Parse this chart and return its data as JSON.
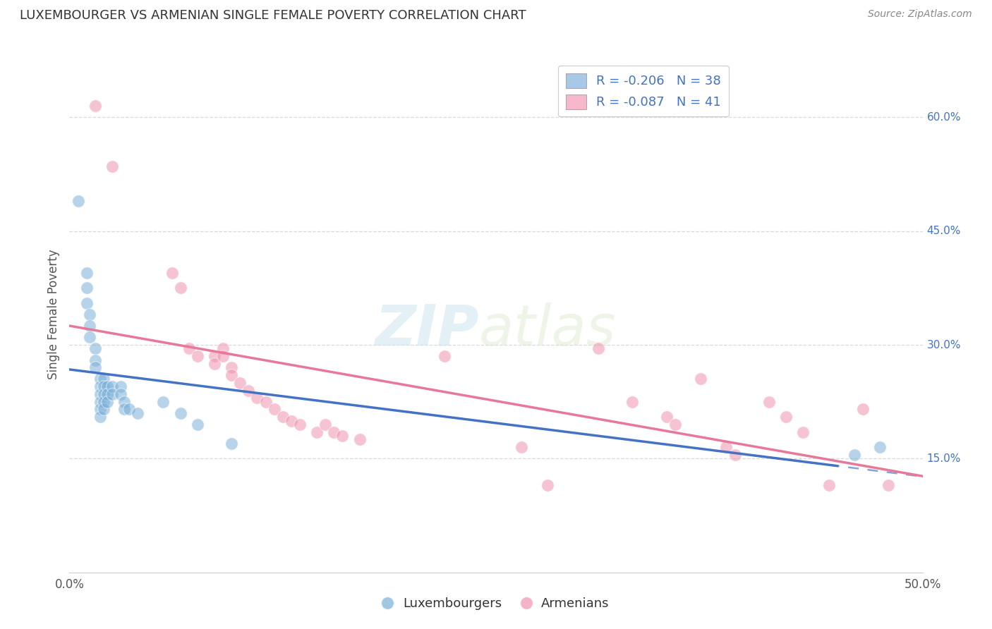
{
  "title": "LUXEMBOURGER VS ARMENIAN SINGLE FEMALE POVERTY CORRELATION CHART",
  "source": "Source: ZipAtlas.com",
  "ylabel": "Single Female Poverty",
  "right_yticks": [
    "60.0%",
    "45.0%",
    "30.0%",
    "15.0%"
  ],
  "right_ytick_vals": [
    0.6,
    0.45,
    0.3,
    0.15
  ],
  "xlim": [
    0.0,
    0.5
  ],
  "ylim": [
    0.0,
    0.68
  ],
  "lux_color": "#7ab0d8",
  "arm_color": "#f093b0",
  "lux_scatter": [
    [
      0.005,
      0.49
    ],
    [
      0.01,
      0.395
    ],
    [
      0.01,
      0.375
    ],
    [
      0.01,
      0.355
    ],
    [
      0.012,
      0.34
    ],
    [
      0.012,
      0.325
    ],
    [
      0.012,
      0.31
    ],
    [
      0.015,
      0.295
    ],
    [
      0.015,
      0.28
    ],
    [
      0.015,
      0.27
    ],
    [
      0.018,
      0.255
    ],
    [
      0.018,
      0.245
    ],
    [
      0.018,
      0.235
    ],
    [
      0.018,
      0.225
    ],
    [
      0.018,
      0.215
    ],
    [
      0.018,
      0.205
    ],
    [
      0.02,
      0.255
    ],
    [
      0.02,
      0.245
    ],
    [
      0.02,
      0.235
    ],
    [
      0.02,
      0.225
    ],
    [
      0.02,
      0.215
    ],
    [
      0.022,
      0.245
    ],
    [
      0.022,
      0.235
    ],
    [
      0.022,
      0.225
    ],
    [
      0.025,
      0.245
    ],
    [
      0.025,
      0.235
    ],
    [
      0.03,
      0.245
    ],
    [
      0.03,
      0.235
    ],
    [
      0.032,
      0.225
    ],
    [
      0.032,
      0.215
    ],
    [
      0.035,
      0.215
    ],
    [
      0.04,
      0.21
    ],
    [
      0.055,
      0.225
    ],
    [
      0.065,
      0.21
    ],
    [
      0.075,
      0.195
    ],
    [
      0.095,
      0.17
    ],
    [
      0.46,
      0.155
    ],
    [
      0.475,
      0.165
    ]
  ],
  "arm_scatter": [
    [
      0.015,
      0.615
    ],
    [
      0.025,
      0.535
    ],
    [
      0.06,
      0.395
    ],
    [
      0.065,
      0.375
    ],
    [
      0.07,
      0.295
    ],
    [
      0.075,
      0.285
    ],
    [
      0.085,
      0.285
    ],
    [
      0.085,
      0.275
    ],
    [
      0.09,
      0.295
    ],
    [
      0.09,
      0.285
    ],
    [
      0.095,
      0.27
    ],
    [
      0.095,
      0.26
    ],
    [
      0.1,
      0.25
    ],
    [
      0.105,
      0.24
    ],
    [
      0.11,
      0.23
    ],
    [
      0.115,
      0.225
    ],
    [
      0.12,
      0.215
    ],
    [
      0.125,
      0.205
    ],
    [
      0.13,
      0.2
    ],
    [
      0.135,
      0.195
    ],
    [
      0.145,
      0.185
    ],
    [
      0.15,
      0.195
    ],
    [
      0.155,
      0.185
    ],
    [
      0.16,
      0.18
    ],
    [
      0.17,
      0.175
    ],
    [
      0.22,
      0.285
    ],
    [
      0.265,
      0.165
    ],
    [
      0.28,
      0.115
    ],
    [
      0.31,
      0.295
    ],
    [
      0.33,
      0.225
    ],
    [
      0.35,
      0.205
    ],
    [
      0.355,
      0.195
    ],
    [
      0.37,
      0.255
    ],
    [
      0.385,
      0.165
    ],
    [
      0.39,
      0.155
    ],
    [
      0.41,
      0.225
    ],
    [
      0.42,
      0.205
    ],
    [
      0.43,
      0.185
    ],
    [
      0.445,
      0.115
    ],
    [
      0.465,
      0.215
    ],
    [
      0.48,
      0.115
    ]
  ],
  "watermark_zip": "ZIP",
  "watermark_atlas": "atlas",
  "background_color": "#ffffff",
  "grid_color": "#d8d8d8",
  "trend_lux_color": "#4472c4",
  "trend_arm_color": "#e8789a",
  "lux_legend_label": "R = -0.206   N = 38",
  "arm_legend_label": "R = -0.087   N = 41",
  "lux_legend_color": "#a8c8e8",
  "arm_legend_color": "#f8b8cc",
  "legend_text_color": "#4472c4",
  "bottom_legend_lux": "Luxembourgers",
  "bottom_legend_arm": "Armenians"
}
